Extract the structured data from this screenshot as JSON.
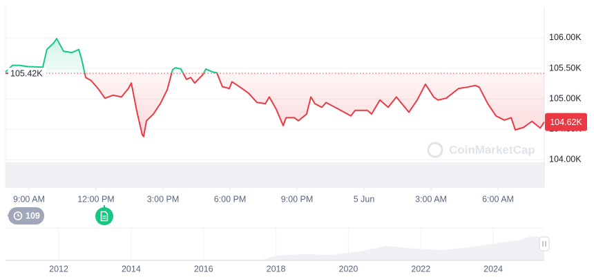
{
  "chart_data": {
    "type": "line",
    "x": [
      7.95,
      8.26,
      8.57,
      8.94,
      9.62,
      9.8,
      10.11,
      10.24,
      10.36,
      10.55,
      10.92,
      11.23,
      11.35,
      11.54,
      11.78,
      12.09,
      12.4,
      12.77,
      13.14,
      13.45,
      13.58,
      13.82,
      14.07,
      14.13,
      14.26,
      14.57,
      14.88,
      15.19,
      15.43,
      15.56,
      15.8,
      16.05,
      16.24,
      16.42,
      16.79,
      16.92,
      17.23,
      17.41,
      17.66,
      17.97,
      18.09,
      18.46,
      18.84,
      19.21,
      19.58,
      19.76,
      20.07,
      20.38,
      20.51,
      20.88,
      21.06,
      21.43,
      21.62,
      21.8,
      22.11,
      22.3,
      22.86,
      23.41,
      23.6,
      24.15,
      24.34,
      24.71,
      25.08,
      25.45,
      26.01,
      26.38,
      26.75,
      27.12,
      27.31,
      27.68,
      28.24,
      28.61,
      28.98,
      29.16,
      29.54,
      29.91,
      30.28,
      30.59,
      30.77,
      31.14,
      31.52,
      31.89,
      32.07
    ],
    "series": [
      {
        "name": "Price",
        "color_up": "#16c784",
        "color_down": "#ea3943",
        "values": [
          105440,
          105550,
          105550,
          105530,
          105520,
          105810,
          105920,
          105990,
          105910,
          105780,
          105760,
          105810,
          105660,
          105350,
          105300,
          105170,
          105010,
          105060,
          105030,
          105170,
          105260,
          104810,
          104410,
          104380,
          104640,
          104750,
          104920,
          105150,
          105480,
          105510,
          105490,
          105320,
          105350,
          105260,
          105400,
          105490,
          105440,
          105430,
          105200,
          105170,
          105280,
          105190,
          105090,
          104940,
          104920,
          105030,
          104830,
          104560,
          104690,
          104690,
          104640,
          104750,
          105030,
          104920,
          104860,
          104940,
          104830,
          104720,
          104810,
          104810,
          104750,
          104980,
          104860,
          105030,
          104780,
          104980,
          105240,
          105030,
          104980,
          105010,
          105170,
          105190,
          105220,
          105190,
          104920,
          104720,
          104650,
          104690,
          104490,
          104530,
          104630,
          104520,
          104620
        ]
      }
    ],
    "reference": {
      "value": 105420,
      "label": "105.42K"
    },
    "current_price": {
      "value": 104620,
      "label": "104.62K"
    },
    "xlim": [
      7.95,
      32.07
    ],
    "xticks": [
      {
        "value": 9,
        "label": "9:00 AM"
      },
      {
        "value": 12,
        "label": "12:00 PM"
      },
      {
        "value": 15,
        "label": "3:00 PM"
      },
      {
        "value": 18,
        "label": "6:00 PM"
      },
      {
        "value": 21,
        "label": "9:00 PM"
      },
      {
        "value": 24,
        "label": "5 Jun"
      },
      {
        "value": 27,
        "label": "3:00 AM"
      },
      {
        "value": 30,
        "label": "6:00 AM"
      }
    ],
    "ylim": [
      103560,
      106510
    ],
    "yticks": [
      {
        "value": 104000,
        "label": "104.00K"
      },
      {
        "value": 104500,
        "label": "104.50K"
      },
      {
        "value": 105000,
        "label": "105.00K"
      },
      {
        "value": 105500,
        "label": "105.50K"
      },
      {
        "value": 106000,
        "label": "106.00K"
      }
    ],
    "grid": true,
    "watermark": "CoinMarketCap",
    "history_badge": "109",
    "navigator": {
      "xlim": [
        2010.53,
        2025.41
      ],
      "xticks": [
        2012,
        2014,
        2016,
        2018,
        2020,
        2022,
        2024
      ]
    }
  }
}
